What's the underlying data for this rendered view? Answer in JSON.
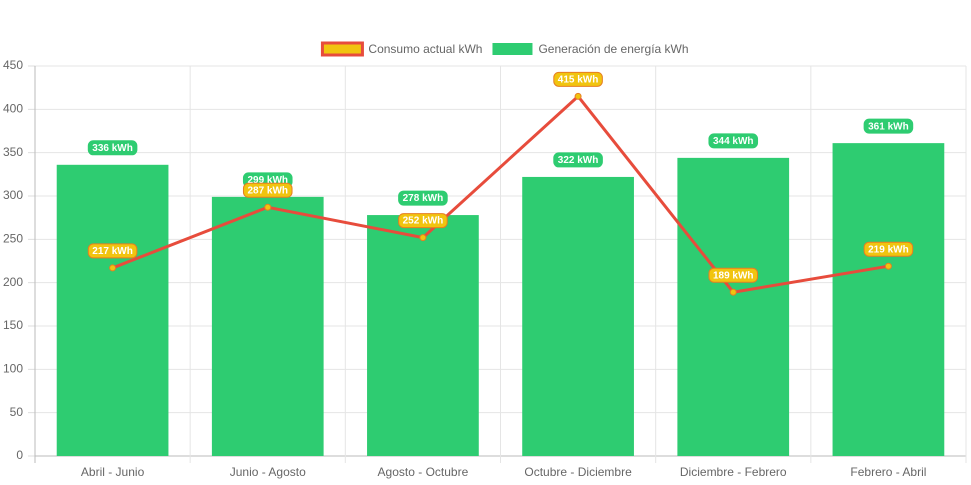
{
  "chart_data": {
    "type": "bar",
    "categories": [
      "Abril - Junio",
      "Junio - Agosto",
      "Agosto - Octubre",
      "Octubre - Diciembre",
      "Diciembre - Febrero",
      "Febrero - Abril"
    ],
    "series": [
      {
        "name": "Consumo actual kWh",
        "type": "line",
        "color": "#e74c3c",
        "point_color": "#f1c40f",
        "values": [
          217,
          287,
          252,
          415,
          189,
          219
        ],
        "value_labels": [
          "217 kWh",
          "287 kWh",
          "252 kWh",
          "415 kWh",
          "189 kWh",
          "219 kWh"
        ]
      },
      {
        "name": "Generación de energía kWh",
        "type": "bar",
        "color": "#2ecc71",
        "values": [
          336,
          299,
          278,
          322,
          344,
          361
        ],
        "value_labels": [
          "336 kWh",
          "299 kWh",
          "278 kWh",
          "322 kWh",
          "344 kWh",
          "361 kWh"
        ]
      }
    ],
    "ylim": [
      0,
      450
    ],
    "yticks": [
      0,
      50,
      100,
      150,
      200,
      250,
      300,
      350,
      400,
      450
    ],
    "grid": true,
    "legend": "top"
  }
}
